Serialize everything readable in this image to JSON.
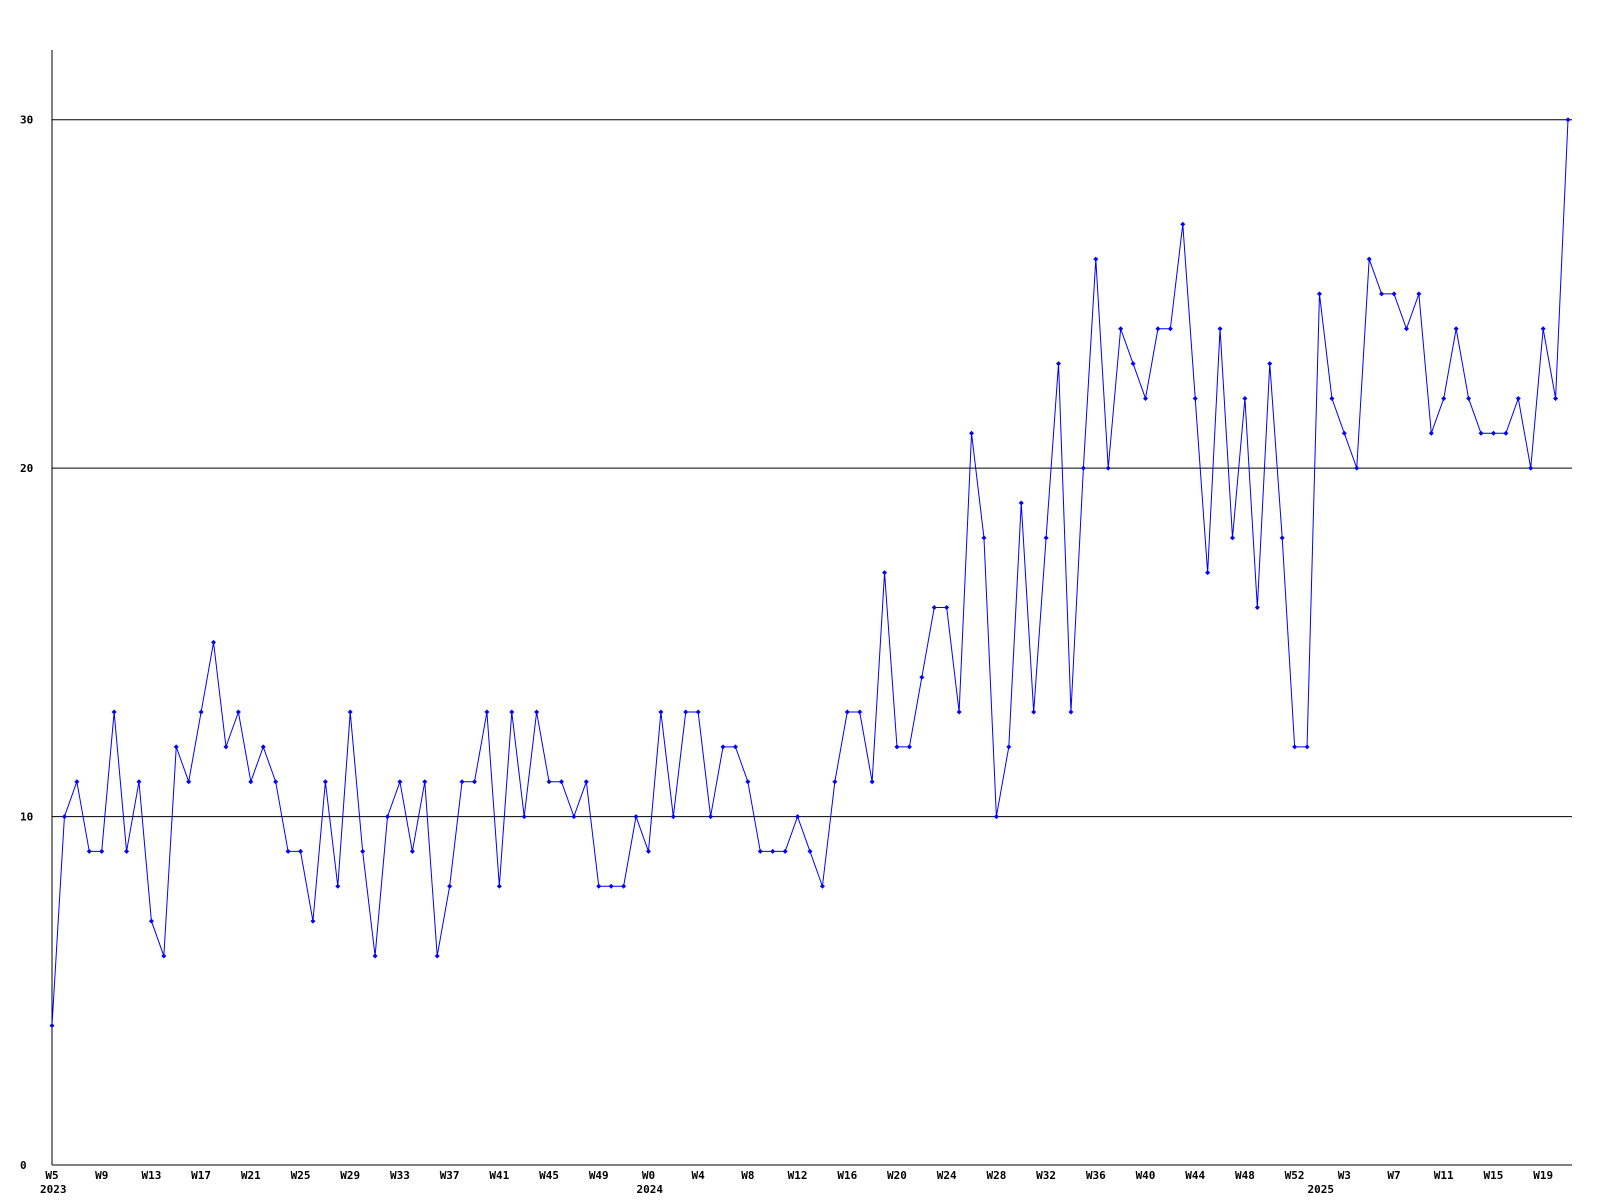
{
  "chart_data": {
    "type": "line",
    "categories": [
      "W5",
      null,
      null,
      null,
      "W9",
      null,
      null,
      null,
      "W13",
      null,
      null,
      null,
      "W17",
      null,
      null,
      null,
      "W21",
      null,
      null,
      null,
      "W25",
      null,
      null,
      null,
      "W29",
      null,
      null,
      null,
      "W33",
      null,
      null,
      null,
      "W37",
      null,
      null,
      null,
      "W41",
      null,
      null,
      null,
      "W45",
      null,
      null,
      null,
      "W49",
      null,
      null,
      null,
      "W0",
      null,
      null,
      null,
      "W4",
      null,
      null,
      null,
      "W8",
      null,
      null,
      null,
      "W12",
      null,
      null,
      null,
      "W16",
      null,
      null,
      null,
      "W20",
      null,
      null,
      null,
      "W24",
      null,
      null,
      null,
      "W28",
      null,
      null,
      null,
      "W32",
      null,
      null,
      null,
      "W36",
      null,
      null,
      null,
      "W40",
      null,
      null,
      null,
      "W44",
      null,
      null,
      null,
      "W48",
      null,
      null,
      null,
      "W52",
      null,
      null,
      null,
      "W3",
      null,
      null,
      null,
      "W7",
      null,
      null,
      null,
      "W11",
      null,
      null,
      null,
      "W15",
      null,
      null,
      null,
      "W19",
      null,
      null
    ],
    "category_groups": [
      "2023",
      null,
      null,
      null,
      null,
      null,
      null,
      null,
      null,
      null,
      null,
      null,
      null,
      null,
      null,
      null,
      null,
      null,
      null,
      null,
      null,
      null,
      null,
      null,
      null,
      null,
      null,
      null,
      null,
      null,
      null,
      null,
      null,
      null,
      null,
      null,
      null,
      null,
      null,
      null,
      null,
      null,
      null,
      null,
      null,
      null,
      null,
      null,
      "2024",
      null,
      null,
      null,
      null,
      null,
      null,
      null,
      null,
      null,
      null,
      null,
      null,
      null,
      null,
      null,
      null,
      null,
      null,
      null,
      null,
      null,
      null,
      null,
      null,
      null,
      null,
      null,
      null,
      null,
      null,
      null,
      null,
      null,
      null,
      null,
      null,
      null,
      null,
      null,
      null,
      null,
      null,
      null,
      null,
      null,
      null,
      null,
      null,
      null,
      null,
      null,
      null,
      null,
      "2025",
      null,
      null,
      null,
      null,
      null,
      null,
      null,
      null,
      null,
      null,
      null,
      null,
      null,
      null,
      null,
      null,
      null,
      null,
      null,
      null
    ],
    "series": [
      {
        "color": "#0000ff",
        "values": [
          4,
          10,
          11,
          9,
          9,
          13,
          9,
          11,
          7,
          6,
          12,
          11,
          13,
          15,
          12,
          13,
          11,
          12,
          11,
          9,
          9,
          7,
          11,
          8,
          13,
          9,
          6,
          10,
          11,
          9,
          11,
          6,
          8,
          11,
          11,
          13,
          8,
          13,
          10,
          13,
          11,
          11,
          10,
          11,
          8,
          8,
          8,
          10,
          9,
          13,
          10,
          13,
          13,
          10,
          12,
          12,
          11,
          9,
          9,
          9,
          10,
          9,
          8,
          11,
          13,
          13,
          11,
          17,
          12,
          12,
          14,
          16,
          16,
          13,
          21,
          18,
          10,
          12,
          19,
          13,
          18,
          23,
          13,
          20,
          26,
          20,
          24,
          23,
          22,
          24,
          24,
          27,
          22,
          17,
          24,
          18,
          22,
          16,
          23,
          18,
          12,
          12,
          25,
          22,
          21,
          20,
          26,
          25,
          25,
          24,
          25,
          21,
          22,
          24,
          22,
          21,
          21,
          21,
          22,
          20,
          24,
          22,
          30
        ]
      }
    ],
    "ylim": [
      0,
      32
    ],
    "yticks": [
      0,
      10,
      20,
      30
    ],
    "grid": true
  }
}
